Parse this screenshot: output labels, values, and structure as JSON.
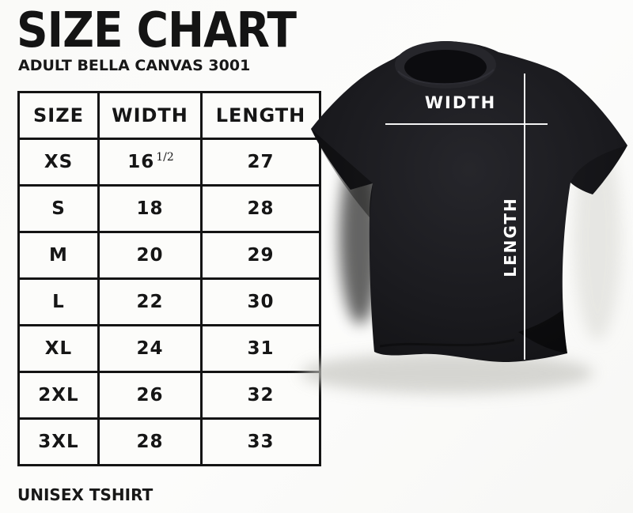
{
  "header": {
    "title": "SIZE CHART",
    "subtitle": "ADULT BELLA CANVAS 3001"
  },
  "table": {
    "columns": [
      "SIZE",
      "WIDTH",
      "LENGTH"
    ],
    "rows": [
      {
        "size": "XS",
        "width": "16",
        "width_frac": "1/2",
        "length": "27"
      },
      {
        "size": "S",
        "width": "18",
        "length": "28"
      },
      {
        "size": "M",
        "width": "20",
        "length": "29"
      },
      {
        "size": "L",
        "width": "22",
        "length": "30"
      },
      {
        "size": "XL",
        "width": "24",
        "length": "31"
      },
      {
        "size": "2XL",
        "width": "26",
        "length": "32"
      },
      {
        "size": "3XL",
        "width": "28",
        "length": "33"
      }
    ]
  },
  "footer": {
    "note": "UNISEX TSHIRT"
  },
  "photo": {
    "width_label": "WIDTH",
    "length_label": "LENGTH"
  },
  "colors": {
    "ink": "#141414",
    "shirt_black": "#17171a",
    "measure_line": "#ffffff",
    "background": "#fafaf8"
  },
  "chart_data": {
    "type": "table",
    "title": "SIZE CHART",
    "subtitle": "ADULT BELLA CANVAS 3001",
    "columns": [
      "SIZE",
      "WIDTH",
      "LENGTH"
    ],
    "rows": [
      [
        "XS",
        "16 1/2",
        "27"
      ],
      [
        "S",
        "18",
        "28"
      ],
      [
        "M",
        "20",
        "29"
      ],
      [
        "L",
        "22",
        "30"
      ],
      [
        "XL",
        "24",
        "31"
      ],
      [
        "2XL",
        "26",
        "32"
      ],
      [
        "3XL",
        "28",
        "33"
      ]
    ],
    "note": "UNISEX TSHIRT",
    "units": "inches",
    "legend_position": "none",
    "grid": true
  }
}
